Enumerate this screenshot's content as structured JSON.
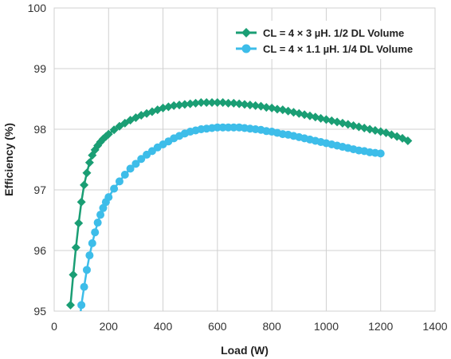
{
  "chart_data": {
    "type": "line",
    "xlabel": "Load (W)",
    "ylabel": "Efficiency (%)",
    "xlim": [
      0,
      1400
    ],
    "ylim": [
      95,
      100
    ],
    "xticks": [
      "0",
      "200",
      "400",
      "600",
      "800",
      "1000",
      "1200",
      "1400"
    ],
    "yticks": [
      "95",
      "96",
      "97",
      "98",
      "99",
      "100"
    ],
    "grid": true,
    "legend_position": "top-right",
    "series": [
      {
        "name": "CL = 4 × 3 µH. 1/2 DL Volume",
        "color": "#1a9e74",
        "marker": "diamond",
        "x": [
          60,
          70,
          80,
          90,
          100,
          110,
          120,
          130,
          140,
          150,
          160,
          170,
          180,
          190,
          200,
          220,
          240,
          260,
          280,
          300,
          320,
          340,
          360,
          380,
          400,
          420,
          440,
          460,
          480,
          500,
          520,
          540,
          560,
          580,
          600,
          620,
          640,
          660,
          680,
          700,
          720,
          740,
          760,
          780,
          800,
          820,
          840,
          860,
          880,
          900,
          920,
          940,
          960,
          980,
          1000,
          1020,
          1040,
          1060,
          1080,
          1100,
          1120,
          1140,
          1160,
          1180,
          1200,
          1220,
          1240,
          1260,
          1280,
          1300
        ],
        "y": [
          95.1,
          95.6,
          96.05,
          96.45,
          96.8,
          97.08,
          97.28,
          97.45,
          97.57,
          97.66,
          97.73,
          97.79,
          97.84,
          97.88,
          97.92,
          97.99,
          98.05,
          98.1,
          98.15,
          98.19,
          98.23,
          98.26,
          98.29,
          98.32,
          98.35,
          98.37,
          98.39,
          98.4,
          98.41,
          98.42,
          98.43,
          98.44,
          98.44,
          98.44,
          98.44,
          98.44,
          98.43,
          98.43,
          98.42,
          98.41,
          98.4,
          98.39,
          98.38,
          98.36,
          98.35,
          98.33,
          98.32,
          98.3,
          98.28,
          98.26,
          98.24,
          98.22,
          98.2,
          98.18,
          98.16,
          98.14,
          98.12,
          98.1,
          98.08,
          98.06,
          98.04,
          98.02,
          98.0,
          97.98,
          97.96,
          97.94,
          97.91,
          97.88,
          97.85,
          97.81
        ]
      },
      {
        "name": "CL = 4 × 1.1 µH. 1/4 DL Volume",
        "color": "#3dbde9",
        "marker": "circle",
        "x": [
          90,
          100,
          110,
          120,
          130,
          140,
          150,
          160,
          170,
          180,
          190,
          200,
          220,
          240,
          260,
          280,
          300,
          320,
          340,
          360,
          380,
          400,
          420,
          440,
          460,
          480,
          500,
          520,
          540,
          560,
          580,
          600,
          620,
          640,
          660,
          680,
          700,
          720,
          740,
          760,
          780,
          800,
          820,
          840,
          860,
          880,
          900,
          920,
          940,
          960,
          980,
          1000,
          1020,
          1040,
          1060,
          1080,
          1100,
          1120,
          1140,
          1160,
          1180,
          1200
        ],
        "y": [
          94.7,
          95.1,
          95.4,
          95.68,
          95.92,
          96.12,
          96.3,
          96.46,
          96.59,
          96.7,
          96.8,
          96.88,
          97.02,
          97.14,
          97.25,
          97.35,
          97.43,
          97.51,
          97.58,
          97.64,
          97.7,
          97.75,
          97.8,
          97.85,
          97.89,
          97.93,
          97.96,
          97.98,
          98.0,
          98.01,
          98.02,
          98.03,
          98.03,
          98.03,
          98.03,
          98.03,
          98.02,
          98.01,
          98.0,
          97.99,
          97.97,
          97.96,
          97.94,
          97.92,
          97.91,
          97.89,
          97.87,
          97.85,
          97.83,
          97.81,
          97.79,
          97.77,
          97.75,
          97.73,
          97.71,
          97.69,
          97.67,
          97.65,
          97.64,
          97.62,
          97.61,
          97.6
        ]
      }
    ]
  }
}
